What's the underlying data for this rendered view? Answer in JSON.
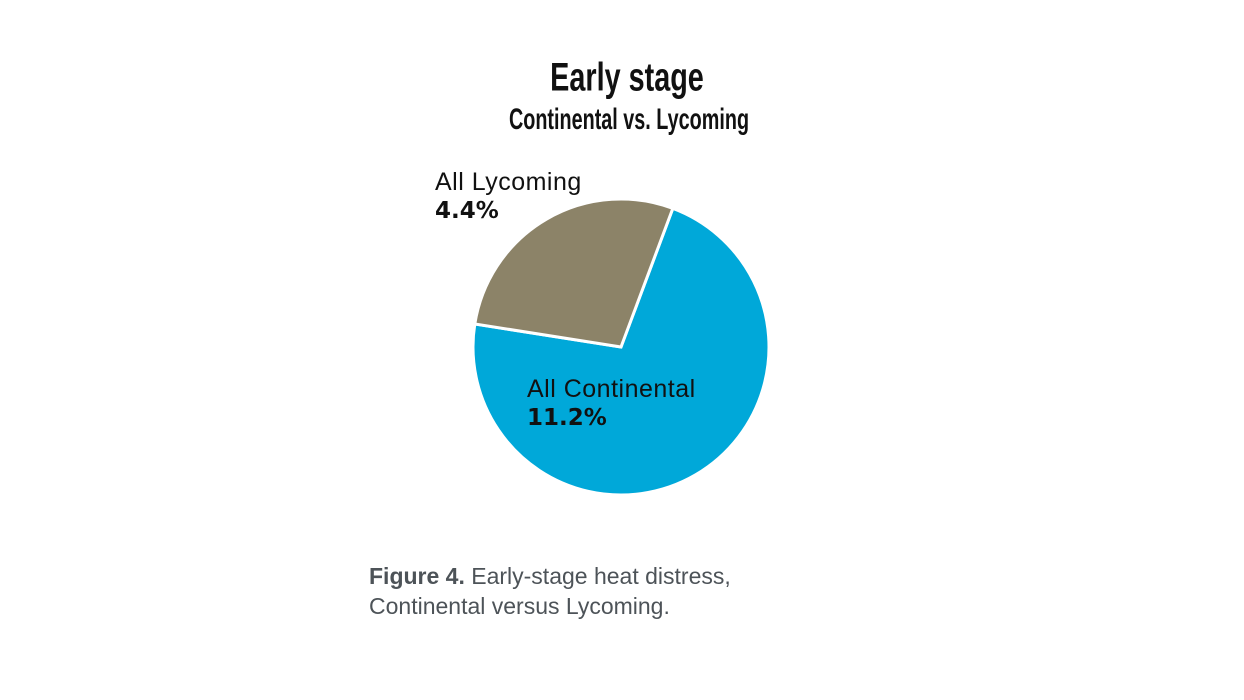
{
  "chart_data": {
    "type": "pie",
    "title": "Early stage",
    "subtitle": "Continental vs. Lycoming",
    "categories": [
      "All Continental",
      "All Lycoming"
    ],
    "values": [
      11.2,
      4.4
    ],
    "value_labels": [
      "11.2%",
      "4.4%"
    ],
    "colors": [
      "#00a8d9",
      "#8c8368"
    ]
  },
  "caption": {
    "label": "Figure 4.",
    "text": "Early-stage heat distress, Continental versus Lycoming."
  }
}
